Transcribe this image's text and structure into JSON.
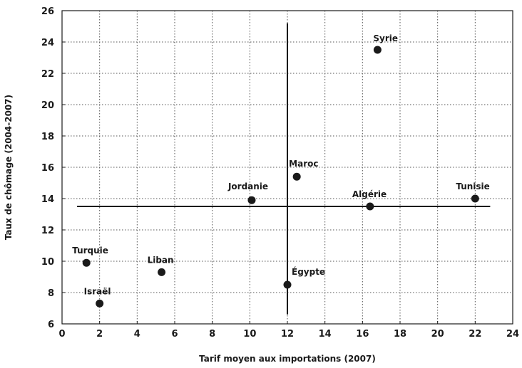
{
  "chart_data": {
    "type": "scatter",
    "title": "",
    "xlabel": "Tarif moyen aux importations (2007)",
    "ylabel": "Taux de chômage (2004-2007)",
    "xlim": [
      0,
      24
    ],
    "ylim": [
      6,
      26
    ],
    "xticks": [
      "0",
      "2",
      "4",
      "6",
      "8",
      "10",
      "12",
      "14",
      "16",
      "18",
      "20",
      "22",
      "24"
    ],
    "yticks": [
      "6",
      "8",
      "10",
      "12",
      "14",
      "16",
      "18",
      "20",
      "22",
      "24",
      "26"
    ],
    "grid": "dotted",
    "points": [
      {
        "label": "Syrie",
        "x": 16.8,
        "y": 23.5
      },
      {
        "label": "Maroc",
        "x": 12.5,
        "y": 15.4
      },
      {
        "label": "Jordanie",
        "x": 10.1,
        "y": 13.9
      },
      {
        "label": "Algérie",
        "x": 16.4,
        "y": 13.5
      },
      {
        "label": "Tunisie",
        "x": 22.0,
        "y": 14.0
      },
      {
        "label": "Turquie",
        "x": 1.3,
        "y": 9.9
      },
      {
        "label": "Liban",
        "x": 5.3,
        "y": 9.3
      },
      {
        "label": "Égypte",
        "x": 12.0,
        "y": 8.5
      },
      {
        "label": "Israël",
        "x": 2.0,
        "y": 7.3
      }
    ],
    "reference_lines": {
      "vertical_x": 12,
      "vertical_y_range": [
        6.6,
        25.2
      ],
      "horizontal_y": 13.5,
      "horizontal_x_range": [
        0.8,
        22.8
      ]
    },
    "colors": {
      "marker": "#1a1a1a",
      "axis": "#1a1a1a",
      "grid": "#555555"
    }
  }
}
